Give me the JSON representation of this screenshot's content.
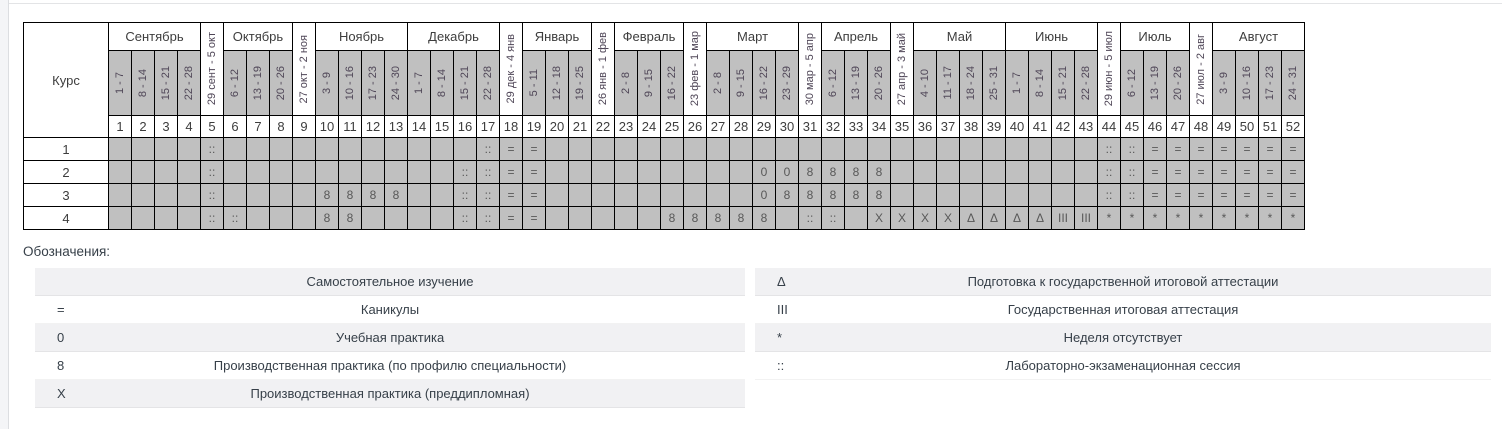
{
  "calendar": {
    "course_header": "Курс",
    "months": [
      {
        "label": "Сентябрь",
        "weeks": 4
      },
      {
        "label": "Октябрь",
        "weeks": 3
      },
      {
        "label": "Ноябрь",
        "weeks": 4
      },
      {
        "label": "Декабрь",
        "weeks": 4
      },
      {
        "label": "Январь",
        "weeks": 3
      },
      {
        "label": "Февраль",
        "weeks": 3
      },
      {
        "label": "Март",
        "weeks": 4
      },
      {
        "label": "Апрель",
        "weeks": 3
      },
      {
        "label": "Май",
        "weeks": 4
      },
      {
        "label": "Июнь",
        "weeks": 4
      },
      {
        "label": "Июль",
        "weeks": 3
      },
      {
        "label": "Август",
        "weeks": 4
      }
    ],
    "columns": [
      {
        "week": 1,
        "dates": "1 - 7"
      },
      {
        "week": 2,
        "dates": "8 - 14"
      },
      {
        "week": 3,
        "dates": "15 - 21"
      },
      {
        "week": 4,
        "dates": "22 - 28"
      },
      {
        "week": 5,
        "dates": "29 сент - 5 окт",
        "transition": true
      },
      {
        "week": 6,
        "dates": "6 - 12"
      },
      {
        "week": 7,
        "dates": "13 - 19"
      },
      {
        "week": 8,
        "dates": "20 - 26"
      },
      {
        "week": 9,
        "dates": "27 окт - 2 ноя",
        "transition": true
      },
      {
        "week": 10,
        "dates": "3 - 9"
      },
      {
        "week": 11,
        "dates": "10 - 16"
      },
      {
        "week": 12,
        "dates": "17 - 23"
      },
      {
        "week": 13,
        "dates": "24 - 30"
      },
      {
        "week": 14,
        "dates": "1 - 7"
      },
      {
        "week": 15,
        "dates": "8 - 14"
      },
      {
        "week": 16,
        "dates": "15 - 21"
      },
      {
        "week": 17,
        "dates": "22 - 28"
      },
      {
        "week": 18,
        "dates": "29 дек - 4 янв",
        "transition": true
      },
      {
        "week": 19,
        "dates": "5 - 11"
      },
      {
        "week": 20,
        "dates": "12 - 18"
      },
      {
        "week": 21,
        "dates": "19 - 25"
      },
      {
        "week": 22,
        "dates": "26 янв - 1 фев",
        "transition": true
      },
      {
        "week": 23,
        "dates": "2 - 8"
      },
      {
        "week": 24,
        "dates": "9 - 15"
      },
      {
        "week": 25,
        "dates": "16 - 22"
      },
      {
        "week": 26,
        "dates": "23 фев - 1 мар",
        "transition": true
      },
      {
        "week": 27,
        "dates": "2 - 8"
      },
      {
        "week": 28,
        "dates": "9 - 15"
      },
      {
        "week": 29,
        "dates": "16 - 22"
      },
      {
        "week": 30,
        "dates": "23 - 29"
      },
      {
        "week": 31,
        "dates": "30 мар - 5 апр",
        "transition": true
      },
      {
        "week": 32,
        "dates": "6 - 12"
      },
      {
        "week": 33,
        "dates": "13 - 19"
      },
      {
        "week": 34,
        "dates": "20 - 26"
      },
      {
        "week": 35,
        "dates": "27 апр - 3 май",
        "transition": true
      },
      {
        "week": 36,
        "dates": "4 - 10"
      },
      {
        "week": 37,
        "dates": "11 - 17"
      },
      {
        "week": 38,
        "dates": "18 - 24"
      },
      {
        "week": 39,
        "dates": "25 - 31"
      },
      {
        "week": 40,
        "dates": "1 - 7"
      },
      {
        "week": 41,
        "dates": "8 - 14"
      },
      {
        "week": 42,
        "dates": "15 - 21"
      },
      {
        "week": 43,
        "dates": "22 - 28"
      },
      {
        "week": 44,
        "dates": "29 июн - 5 июл",
        "transition": true
      },
      {
        "week": 45,
        "dates": "6 - 12"
      },
      {
        "week": 46,
        "dates": "13 - 19"
      },
      {
        "week": 47,
        "dates": "20 - 26"
      },
      {
        "week": 48,
        "dates": "27 июл - 2 авг",
        "transition": true
      },
      {
        "week": 49,
        "dates": "3 - 9"
      },
      {
        "week": 50,
        "dates": "10 - 16"
      },
      {
        "week": 51,
        "dates": "17 - 23"
      },
      {
        "week": 52,
        "dates": "24 - 31"
      }
    ],
    "courses": [
      {
        "label": "1",
        "cells": [
          "",
          "",
          "",
          "",
          "::",
          "",
          "",
          "",
          "",
          "",
          "",
          "",
          "",
          "",
          "",
          "",
          "::",
          "=",
          "=",
          "",
          "",
          "",
          "",
          "",
          "",
          "",
          "",
          "",
          "",
          "",
          "",
          "",
          "",
          "",
          "",
          "",
          "",
          "",
          "",
          "",
          "",
          "",
          "",
          "::",
          "::",
          "=",
          "=",
          "=",
          "=",
          "=",
          "=",
          "="
        ]
      },
      {
        "label": "2",
        "cells": [
          "",
          "",
          "",
          "",
          "::",
          "",
          "",
          "",
          "",
          "",
          "",
          "",
          "",
          "",
          "",
          "::",
          "::",
          "=",
          "=",
          "",
          "",
          "",
          "",
          "",
          "",
          "",
          "",
          "",
          "0",
          "0",
          "8",
          "8",
          "8",
          "8",
          "",
          "",
          "",
          "",
          "",
          "",
          "",
          "",
          "",
          "::",
          "::",
          "=",
          "=",
          "=",
          "=",
          "=",
          "=",
          "="
        ]
      },
      {
        "label": "3",
        "cells": [
          "",
          "",
          "",
          "",
          "::",
          "",
          "",
          "",
          "",
          "8",
          "8",
          "8",
          "8",
          "",
          "",
          "::",
          "::",
          "=",
          "=",
          "",
          "",
          "",
          "",
          "",
          "",
          "",
          "",
          "",
          "0",
          "8",
          "8",
          "8",
          "8",
          "8",
          "",
          "",
          "",
          "",
          "",
          "",
          "",
          "",
          "",
          "::",
          "::",
          "=",
          "=",
          "=",
          "=",
          "=",
          "=",
          "="
        ]
      },
      {
        "label": "4",
        "cells": [
          "",
          "",
          "",
          "",
          "::",
          "::",
          "",
          "",
          "",
          "8",
          "8",
          "",
          "",
          "",
          "",
          "::",
          "::",
          "=",
          "=",
          "",
          "",
          "",
          "",
          "",
          "8",
          "8",
          "8",
          "8",
          "8",
          "",
          "::",
          "::",
          "",
          "X",
          "X",
          "X",
          "X",
          "Δ",
          "Δ",
          "Δ",
          "Δ",
          "III",
          "III",
          "*",
          "*",
          "*",
          "*",
          "*",
          "*",
          "*",
          "*",
          "*"
        ]
      }
    ]
  },
  "legend": {
    "title": "Обозначения:",
    "left": [
      {
        "symbol": "",
        "label": "Самостоятельное изучение"
      },
      {
        "symbol": "=",
        "label": "Каникулы"
      },
      {
        "symbol": "0",
        "label": "Учебная практика"
      },
      {
        "symbol": "8",
        "label": "Производственная практика (по профилю специальности)"
      },
      {
        "symbol": "X",
        "label": "Производственная практика (преддипломная)"
      }
    ],
    "right": [
      {
        "symbol": "Δ",
        "label": "Подготовка к государственной итоговой аттестации"
      },
      {
        "symbol": "III",
        "label": "Государственная итоговая аттестация"
      },
      {
        "symbol": "*",
        "label": "Неделя отсутствует"
      },
      {
        "symbol": "::",
        "label": "Лабораторно-экзаменационная сессия"
      }
    ]
  },
  "colors": {
    "cell_gray": "#c0c0c0",
    "legend_row_gray": "#f1f1f3",
    "table_border": "#000000",
    "text": "#3d3d3d",
    "rotated_text": "#4f4657",
    "panel_line": "#dcdee1"
  }
}
